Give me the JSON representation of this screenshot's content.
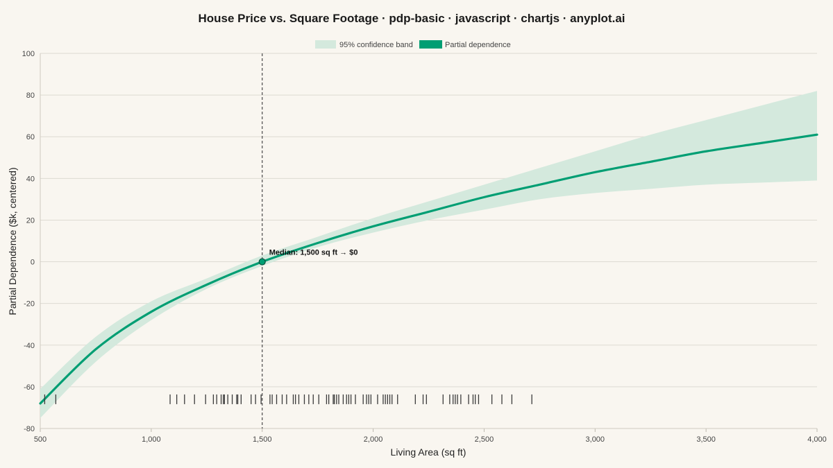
{
  "chart_data": {
    "type": "line",
    "title": "House Price vs. Square Footage · pdp-basic · javascript · chartjs · anyplot.ai",
    "xlabel": "Living Area (sq ft)",
    "ylabel": "Partial Dependence ($k, centered)",
    "xlim": [
      500,
      4000
    ],
    "ylim": [
      -80,
      100
    ],
    "x_ticks": [
      500,
      1000,
      1500,
      2000,
      2500,
      3000,
      3500,
      4000
    ],
    "x_tick_labels": [
      "500",
      "1,000",
      "1,500",
      "2,000",
      "2,500",
      "3,000",
      "3,500",
      "4,000"
    ],
    "y_ticks": [
      -80,
      -60,
      -40,
      -20,
      0,
      20,
      40,
      60,
      80,
      100
    ],
    "y_tick_labels": [
      "-80",
      "-60",
      "-40",
      "-20",
      "0",
      "20",
      "40",
      "60",
      "80",
      "100"
    ],
    "grid": true,
    "legend_position": "top-center",
    "legend": [
      {
        "label": "95% confidence band",
        "color": "#d4e9dd",
        "kind": "band"
      },
      {
        "label": "Partial dependence",
        "color": "#009e73",
        "kind": "line"
      }
    ],
    "series": [
      {
        "name": "Partial dependence",
        "color": "#009e73",
        "x": [
          500,
          750,
          1000,
          1250,
          1500,
          1750,
          2000,
          2250,
          2500,
          2750,
          3000,
          3250,
          3500,
          3750,
          4000
        ],
        "y": [
          -68,
          -42,
          -24,
          -11,
          0,
          9,
          17,
          24,
          31,
          37,
          43,
          48,
          53,
          57,
          61
        ]
      },
      {
        "name": "95% confidence band",
        "color": "#d4e9dd",
        "x": [
          500,
          750,
          1000,
          1250,
          1500,
          1750,
          2000,
          2250,
          2500,
          2750,
          3000,
          3250,
          3500,
          3750,
          4000
        ],
        "lower": [
          -75,
          -48,
          -28,
          -13,
          -2,
          7,
          14,
          20,
          25,
          30,
          33,
          35,
          37,
          38,
          39
        ],
        "upper": [
          -61,
          -36,
          -19,
          -8,
          3,
          12,
          21,
          29,
          37,
          45,
          53,
          61,
          68,
          75,
          82
        ]
      }
    ],
    "median_marker": {
      "x": 1500,
      "y": 0,
      "label": "Median: 1,500 sq ft → $0"
    },
    "rug": {
      "y": -66,
      "x": [
        520,
        570,
        1085,
        1115,
        1150,
        1195,
        1245,
        1280,
        1295,
        1315,
        1325,
        1330,
        1345,
        1365,
        1385,
        1390,
        1405,
        1450,
        1470,
        1495,
        1535,
        1545,
        1565,
        1590,
        1610,
        1640,
        1650,
        1665,
        1690,
        1710,
        1730,
        1755,
        1790,
        1800,
        1820,
        1825,
        1835,
        1845,
        1865,
        1880,
        1890,
        1900,
        1920,
        1955,
        1970,
        1980,
        1990,
        2020,
        2045,
        2055,
        2065,
        2075,
        2085,
        2110,
        2190,
        2225,
        2240,
        2315,
        2345,
        2360,
        2370,
        2380,
        2395,
        2430,
        2450,
        2460,
        2475,
        2535,
        2580,
        2625,
        2715
      ]
    }
  }
}
